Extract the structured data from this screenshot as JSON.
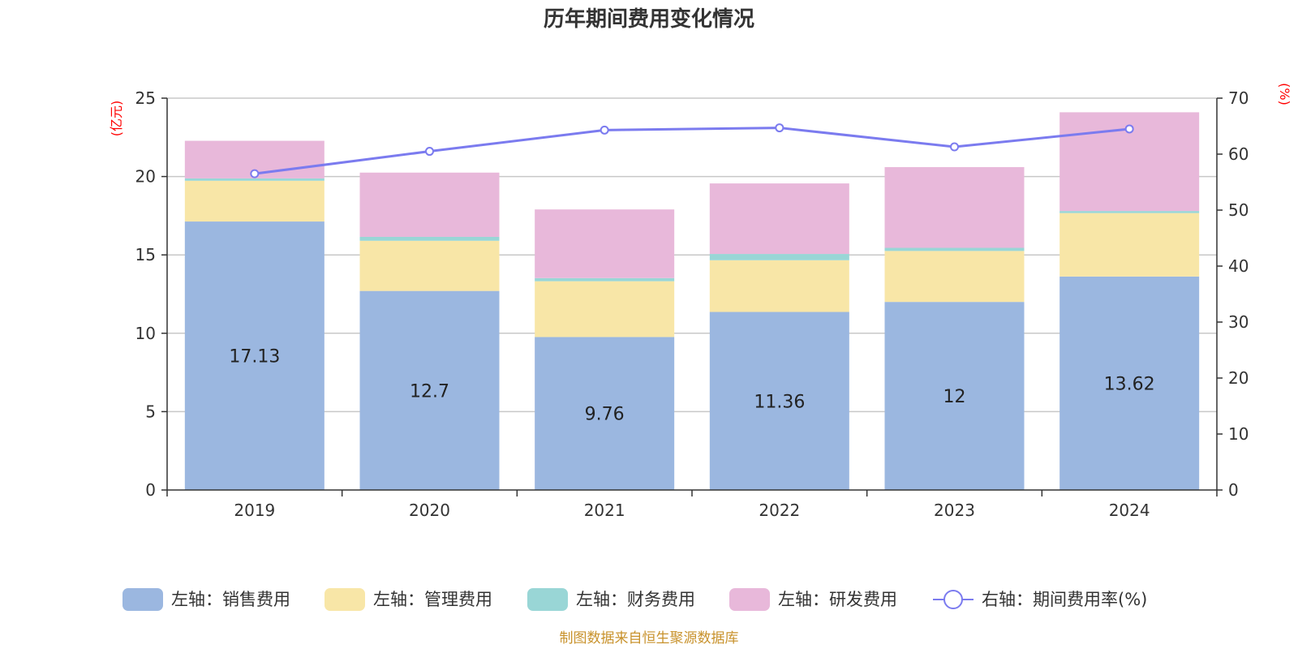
{
  "chart_data": {
    "type": "bar",
    "stacked": true,
    "title": "历年期间费用变化情况",
    "categories": [
      "2019",
      "2020",
      "2021",
      "2022",
      "2023",
      "2024"
    ],
    "left_axis": {
      "unit": "(亿元)",
      "ylim": [
        0,
        25
      ],
      "ticks": [
        0,
        5,
        10,
        15,
        20,
        25
      ]
    },
    "right_axis": {
      "unit": "(%)",
      "ylim": [
        0,
        70
      ],
      "ticks": [
        0,
        10,
        20,
        30,
        40,
        50,
        60,
        70
      ]
    },
    "series": [
      {
        "name": "左轴：销售费用",
        "color": "#9bb7e0",
        "axis": "left",
        "values": [
          17.13,
          12.7,
          9.76,
          11.36,
          12,
          13.62
        ],
        "labels": [
          "17.13",
          "12.7",
          "9.76",
          "11.36",
          "12",
          "13.62"
        ]
      },
      {
        "name": "左轴：管理费用",
        "color": "#f8e6a7",
        "axis": "left",
        "values": [
          2.6,
          3.2,
          3.56,
          3.3,
          3.25,
          4.05
        ]
      },
      {
        "name": "左轴：财务费用",
        "color": "#99d6d6",
        "axis": "left",
        "values": [
          0.15,
          0.25,
          0.2,
          0.4,
          0.2,
          0.13
        ]
      },
      {
        "name": "左轴：研发费用",
        "color": "#e8b8da",
        "axis": "left",
        "values": [
          2.4,
          4.1,
          4.38,
          4.5,
          5.15,
          6.3
        ]
      },
      {
        "name": "右轴：期间费用率(%)",
        "color": "#7b7bef",
        "axis": "right",
        "type": "line",
        "values": [
          56.5,
          60.5,
          64.3,
          64.7,
          61.3,
          64.5
        ]
      }
    ],
    "legend_position": "bottom",
    "grid": true
  },
  "source_note": "制图数据来自恒生聚源数据库"
}
